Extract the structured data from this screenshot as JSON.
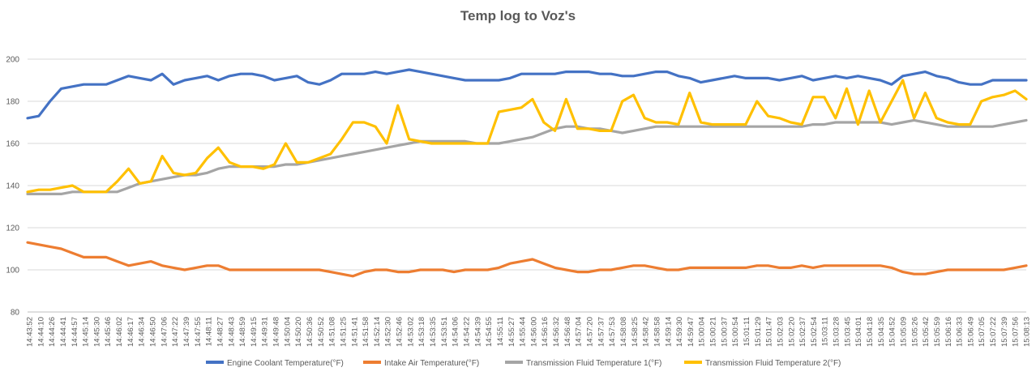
{
  "chart_data": {
    "type": "line",
    "title": "Temp log to Voz's",
    "xlabel": "",
    "ylabel": "",
    "ylim": [
      80,
      200
    ],
    "ytick_step": 20,
    "grid": true,
    "legend": "bottom",
    "x_ticks": [
      "14:43:52",
      "14:44:10",
      "14:44:26",
      "14:44:41",
      "14:44:57",
      "14:45:14",
      "14:45:30",
      "14:45:46",
      "14:46:02",
      "14:46:17",
      "14:46:34",
      "14:46:50",
      "14:47:06",
      "14:47:22",
      "14:47:39",
      "14:47:55",
      "14:48:11",
      "14:48:27",
      "14:48:43",
      "14:48:59",
      "14:49:15",
      "14:49:31",
      "14:49:48",
      "14:50:04",
      "14:50:20",
      "14:50:36",
      "14:50:52",
      "14:51:08",
      "14:51:25",
      "14:51:41",
      "14:51:58",
      "14:52:14",
      "14:52:30",
      "14:52:46",
      "14:53:02",
      "14:53:18",
      "14:53:35",
      "14:53:51",
      "14:54:06",
      "14:54:22",
      "14:54:39",
      "14:54:55",
      "14:55:11",
      "14:55:27",
      "14:55:44",
      "14:56:00",
      "14:56:16",
      "14:56:32",
      "14:56:48",
      "14:57:04",
      "14:57:20",
      "14:57:37",
      "14:57:53",
      "14:58:08",
      "14:58:25",
      "14:58:42",
      "14:58:58",
      "14:59:14",
      "14:59:30",
      "14:59:47",
      "15:00:04",
      "15:00:21",
      "15:00:37",
      "15:00:54",
      "15:01:11",
      "15:01:29",
      "15:01:47",
      "15:02:03",
      "15:02:20",
      "15:02:37",
      "15:02:54",
      "15:03:11",
      "15:03:28",
      "15:03:45",
      "15:04:01",
      "15:04:18",
      "15:04:35",
      "15:04:52",
      "15:05:09",
      "15:05:26",
      "15:05:42",
      "15:05:59",
      "15:06:16",
      "15:06:33",
      "15:06:49",
      "15:07:05",
      "15:07:22",
      "15:07:39",
      "15:07:56",
      "15:08:13"
    ],
    "series": [
      {
        "name": "Engine Coolant Temperature(°F)",
        "color": "#4472C4",
        "values": [
          172,
          173,
          180,
          186,
          187,
          188,
          188,
          188,
          190,
          192,
          191,
          190,
          193,
          188,
          190,
          191,
          192,
          190,
          192,
          193,
          193,
          192,
          190,
          191,
          192,
          189,
          188,
          190,
          193,
          193,
          193,
          194,
          193,
          194,
          195,
          194,
          193,
          192,
          191,
          190,
          190,
          190,
          190,
          191,
          193,
          193,
          193,
          193,
          194,
          194,
          194,
          193,
          193,
          192,
          192,
          193,
          194,
          194,
          192,
          191,
          189,
          190,
          191,
          192,
          191,
          191,
          191,
          190,
          191,
          192,
          190,
          191,
          192,
          191,
          192,
          191,
          190,
          188,
          192,
          193,
          194,
          192,
          191,
          189,
          188,
          188,
          190,
          190,
          190,
          190
        ]
      },
      {
        "name": "Intake Air Temperature(°F)",
        "color": "#ED7D31",
        "values": [
          113,
          112,
          111,
          110,
          108,
          106,
          106,
          106,
          104,
          102,
          103,
          104,
          102,
          101,
          100,
          101,
          102,
          102,
          100,
          100,
          100,
          100,
          100,
          100,
          100,
          100,
          100,
          99,
          98,
          97,
          99,
          100,
          100,
          99,
          99,
          100,
          100,
          100,
          99,
          100,
          100,
          100,
          101,
          103,
          104,
          105,
          103,
          101,
          100,
          99,
          99,
          100,
          100,
          101,
          102,
          102,
          101,
          100,
          100,
          101,
          101,
          101,
          101,
          101,
          101,
          102,
          102,
          101,
          101,
          102,
          101,
          102,
          102,
          102,
          102,
          102,
          102,
          101,
          99,
          98,
          98,
          99,
          100,
          100,
          100,
          100,
          100,
          100,
          101,
          102
        ]
      },
      {
        "name": "Transmission Fluid Temperature 1(°F)",
        "color": "#A5A5A5",
        "values": [
          136,
          136,
          136,
          136,
          137,
          137,
          137,
          137,
          137,
          139,
          141,
          142,
          143,
          144,
          145,
          145,
          146,
          148,
          149,
          149,
          149,
          149,
          149,
          150,
          150,
          151,
          152,
          153,
          154,
          155,
          156,
          157,
          158,
          159,
          160,
          161,
          161,
          161,
          161,
          161,
          160,
          160,
          160,
          161,
          162,
          163,
          165,
          167,
          168,
          168,
          167,
          167,
          166,
          165,
          166,
          167,
          168,
          168,
          168,
          168,
          168,
          168,
          168,
          168,
          168,
          168,
          168,
          168,
          168,
          168,
          169,
          169,
          170,
          170,
          170,
          170,
          170,
          169,
          170,
          171,
          170,
          169,
          168,
          168,
          168,
          168,
          168,
          169,
          170,
          171
        ]
      },
      {
        "name": "Transmission Fluid Temperature 2(°F)",
        "color": "#FFC000",
        "values": [
          137,
          138,
          138,
          139,
          140,
          137,
          137,
          137,
          142,
          148,
          141,
          142,
          154,
          146,
          145,
          146,
          153,
          158,
          151,
          149,
          149,
          148,
          150,
          160,
          151,
          151,
          153,
          155,
          162,
          170,
          170,
          168,
          160,
          178,
          162,
          161,
          160,
          160,
          160,
          160,
          160,
          160,
          175,
          176,
          177,
          181,
          170,
          166,
          181,
          167,
          167,
          166,
          166,
          180,
          183,
          172,
          170,
          170,
          169,
          184,
          170,
          169,
          169,
          169,
          169,
          180,
          173,
          172,
          170,
          169,
          182,
          182,
          172,
          186,
          169,
          185,
          170,
          180,
          190,
          172,
          184,
          172,
          170,
          169,
          169,
          180,
          182,
          183,
          185,
          181
        ]
      }
    ]
  }
}
